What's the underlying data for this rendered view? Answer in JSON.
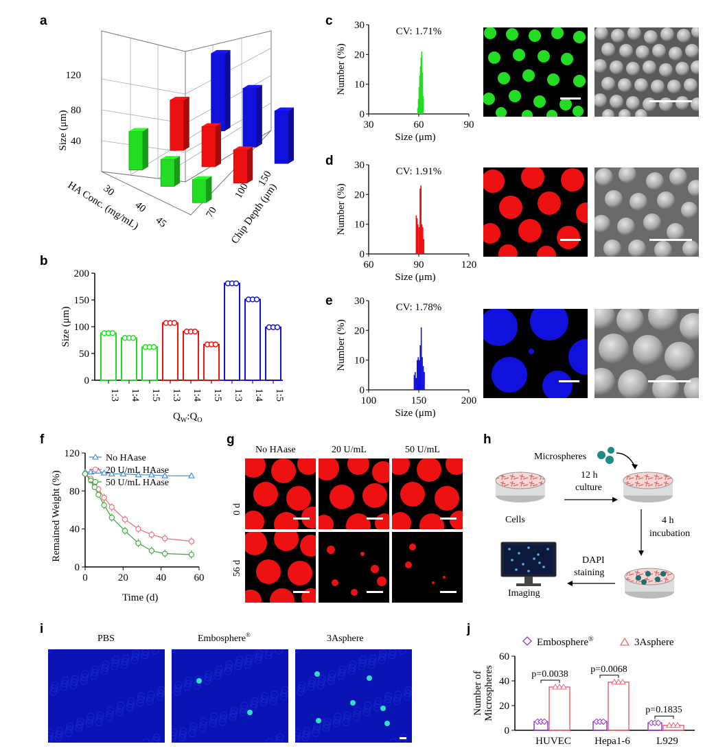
{
  "colors": {
    "green": "#22dd22",
    "red": "#ee1111",
    "blue": "#1111dd",
    "pink": "#ee6677",
    "sky": "#3388dd",
    "grass": "#33aa33",
    "purple": "#9933cc",
    "fluor_blue": "#0a14b4",
    "cyan": "#33ddcc"
  },
  "panels": {
    "a": "a",
    "b": "b",
    "c": "c",
    "d": "d",
    "e": "e",
    "f": "f",
    "g": "g",
    "h": "h",
    "i": "i",
    "j": "j"
  },
  "chart_data": [
    {
      "id": "a",
      "type": "bar",
      "title": "",
      "zlabel": "Size (μm)",
      "xlabel": "HA Conc. (mg/mL)",
      "ylabel": "Chip Depth (μm)",
      "z_ticks": [
        "40",
        "80",
        "120"
      ],
      "x_ticks": [
        "30",
        "40",
        "45"
      ],
      "y_ticks": [
        "70",
        "100",
        "150"
      ],
      "series": [
        {
          "name": "70",
          "color": "#22dd22",
          "values": [
            70,
            55,
            50
          ]
        },
        {
          "name": "100",
          "color": "#ee1111",
          "values": [
            85,
            72,
            63
          ]
        },
        {
          "name": "150",
          "color": "#1111dd",
          "values": [
            120,
            96,
            88
          ]
        }
      ]
    },
    {
      "id": "b",
      "type": "bar",
      "ylabel": "Size (μm)",
      "xlabel": "Q_W:Q_O",
      "xlabel_main": "Q",
      "xlabel_sub1": "W",
      "xlabel_colon": ":Q",
      "xlabel_sub2": "O",
      "ylim": [
        0,
        200
      ],
      "y_ticks": [
        "0",
        "50",
        "100",
        "150",
        "200"
      ],
      "categories": [
        "1:3",
        "1:4",
        "1:5",
        "1:3",
        "1:4",
        "1:5",
        "1:3",
        "1:4",
        "1:5"
      ],
      "values": [
        88,
        79,
        62,
        107,
        91,
        67,
        181,
        151,
        99
      ]
    },
    {
      "id": "c",
      "type": "bar",
      "title": "CV: 1.71%",
      "xlabel": "Size (μm)",
      "ylabel": "Number (%)",
      "xlim": [
        30,
        90
      ],
      "ylim": [
        0,
        30
      ],
      "x_ticks": [
        "30",
        "60",
        "90"
      ],
      "y_ticks": [
        "0",
        "10",
        "20",
        "30"
      ],
      "x": [
        59.4,
        59.8,
        60.2,
        60.6,
        61.0,
        61.4,
        61.8,
        62.2,
        62.6
      ],
      "values": [
        2,
        5,
        9,
        13,
        16,
        19,
        21,
        14,
        6
      ]
    },
    {
      "id": "d",
      "type": "bar",
      "title": "CV: 1.91%",
      "xlabel": "Size (μm)",
      "ylabel": "Number (%)",
      "xlim": [
        60,
        120
      ],
      "ylim": [
        0,
        30
      ],
      "x_ticks": [
        "60",
        "90",
        "120"
      ],
      "y_ticks": [
        "0",
        "10",
        "20",
        "30"
      ],
      "x": [
        88.5,
        89.0,
        89.5,
        90.2,
        90.8,
        91.3,
        91.8,
        92.4,
        93.0
      ],
      "values": [
        13,
        12,
        10,
        9,
        22,
        23,
        10,
        9,
        5
      ]
    },
    {
      "id": "e",
      "type": "bar",
      "title": "CV: 1.78%",
      "xlabel": "Size (μm)",
      "ylabel": "Number (%)",
      "xlim": [
        100,
        200
      ],
      "ylim": [
        0,
        30
      ],
      "x_ticks": [
        "100",
        "150",
        "200"
      ],
      "y_ticks": [
        "0",
        "10",
        "20",
        "30"
      ],
      "x": [
        145.5,
        146.5,
        147.5,
        148.5,
        149.5,
        150.5,
        151.5,
        152.5,
        153.5,
        154.5,
        155.5
      ],
      "values": [
        5,
        6,
        4,
        10,
        11,
        10,
        15,
        21,
        11,
        8,
        6
      ]
    },
    {
      "id": "f",
      "type": "line",
      "xlabel": "Time (d)",
      "ylabel": "Remained Weight (%)",
      "xlim": [
        0,
        60
      ],
      "ylim": [
        0,
        120
      ],
      "x_ticks": [
        "0",
        "20",
        "40",
        "60"
      ],
      "y_ticks": [
        "0",
        "40",
        "80",
        "120"
      ],
      "legend": "top-left",
      "series": [
        {
          "name": "No HAase",
          "color": "#3388dd",
          "marker": "triangle",
          "x": [
            0,
            3,
            5,
            7,
            10,
            14,
            20,
            28,
            35,
            42,
            56
          ],
          "y": [
            100,
            100,
            101,
            101,
            99,
            98,
            98,
            97,
            97,
            96,
            96
          ]
        },
        {
          "name": "20 U/mL HAase",
          "color": "#ee6677",
          "marker": "circle",
          "x": [
            0,
            3,
            5,
            7,
            10,
            14,
            21,
            28,
            35,
            42,
            56
          ],
          "y": [
            98,
            93,
            88,
            82,
            73,
            63,
            50,
            40,
            34,
            30,
            27
          ]
        },
        {
          "name": "50 U/mL HAase",
          "color": "#33aa33",
          "marker": "circle",
          "x": [
            0,
            3,
            5,
            7,
            10,
            14,
            21,
            28,
            35,
            42,
            56
          ],
          "y": [
            98,
            91,
            84,
            76,
            65,
            52,
            38,
            25,
            17,
            14,
            13
          ]
        }
      ]
    },
    {
      "id": "j",
      "type": "bar",
      "ylabel": "Number of Microspheres",
      "ylabel1": "Number of",
      "ylabel2": "Microspheres",
      "ylim": [
        0,
        60
      ],
      "y_ticks": [
        "0",
        "20",
        "40",
        "60"
      ],
      "categories": [
        "HUVEC",
        "Hepa1-6",
        "L929"
      ],
      "series": [
        {
          "name": "Embosphere®",
          "name_main": "Embosphere",
          "name_sup": "®",
          "color": "#9933cc",
          "values": [
            7,
            7,
            6
          ]
        },
        {
          "name": "3Asphere",
          "color": "#ee6677",
          "values": [
            35,
            39,
            4
          ]
        }
      ],
      "annotations": [
        "p=0.0038",
        "p=0.0068",
        "p=0.1835"
      ]
    }
  ],
  "g": {
    "cols": [
      "No HAase",
      "20 U/mL",
      "50 U/mL"
    ],
    "rows": [
      "0 d",
      "56 d"
    ]
  },
  "h": {
    "microspheres": "Microspheres",
    "step1a": "12 h",
    "step1b": "culture",
    "cells": "Cells",
    "step2a": "4 h",
    "step2b": "incubation",
    "step3a": "DAPI",
    "step3b": "staining",
    "imaging": "Imaging"
  },
  "i": {
    "titles": [
      "PBS",
      "Embosphere",
      "3Asphere"
    ],
    "sup": "®"
  }
}
